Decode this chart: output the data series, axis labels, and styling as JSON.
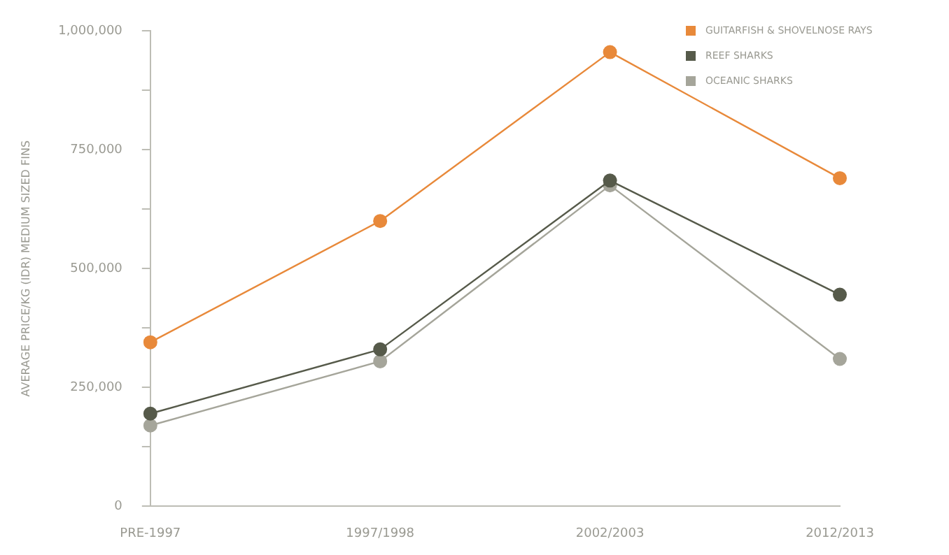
{
  "chart_data": {
    "type": "line",
    "ylabel": "AVERAGE PRICE/KG (IDR) MEDIUM SIZED FINS",
    "categories": [
      "PRE-1997",
      "1997/1998",
      "2002/2003",
      "2012/2013"
    ],
    "series": [
      {
        "name": "GUITARFISH & SHOVELNOSE RAYS",
        "color": "#e8893a",
        "values": [
          345000,
          600000,
          955000,
          690000
        ]
      },
      {
        "name": "REEF SHARKS",
        "color": "#565a4a",
        "values": [
          195000,
          330000,
          685000,
          445000
        ]
      },
      {
        "name": "OCEANIC SHARKS",
        "color": "#a5a59a",
        "values": [
          170000,
          305000,
          675000,
          310000
        ]
      }
    ],
    "ylim": [
      0,
      1000000
    ],
    "yticks": [
      0,
      {
        "value": 125000,
        "label": null
      },
      {
        "value": 250000,
        "label": "250,000"
      },
      {
        "value": 375000,
        "label": null
      },
      {
        "value": 500000,
        "label": "500,000"
      },
      {
        "value": 625000,
        "label": null
      },
      {
        "value": 750000,
        "label": "750,000"
      },
      {
        "value": 875000,
        "label": null
      },
      {
        "value": 1000000,
        "label": "1,000,000"
      }
    ],
    "grid": false,
    "legend": "top right",
    "marker": "circle",
    "line_style": "solid"
  }
}
